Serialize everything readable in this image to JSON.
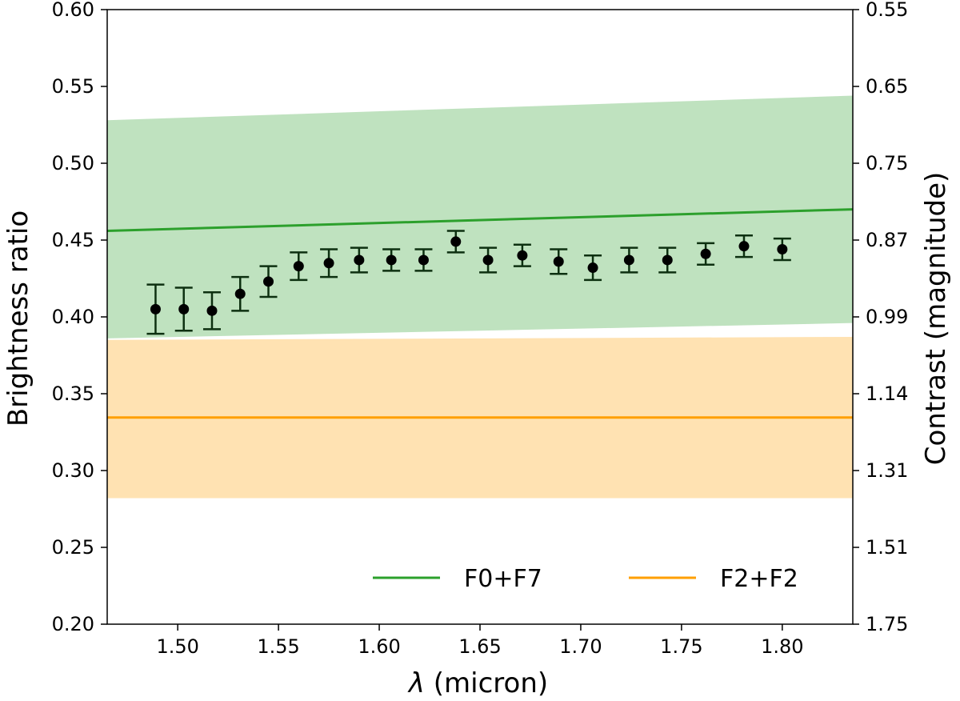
{
  "chart_data": {
    "type": "scatter",
    "xlabel": "λ (micron)",
    "xlabel_symbol": "λ",
    "xlabel_unit": "(micron)",
    "ylabel": "Brightness ratio",
    "y2label": "Contrast (magnitude)",
    "xlim": [
      1.465,
      1.835
    ],
    "ylim": [
      0.2,
      0.6
    ],
    "xticks": [
      1.5,
      1.55,
      1.6,
      1.65,
      1.7,
      1.75,
      1.8
    ],
    "xtick_labels": [
      "1.50",
      "1.55",
      "1.60",
      "1.65",
      "1.70",
      "1.75",
      "1.80"
    ],
    "yticks": [
      0.2,
      0.25,
      0.3,
      0.35,
      0.4,
      0.45,
      0.5,
      0.55,
      0.6
    ],
    "ytick_labels": [
      "0.20",
      "0.25",
      "0.30",
      "0.35",
      "0.40",
      "0.45",
      "0.50",
      "0.55",
      "0.60"
    ],
    "y2tick_labels": [
      "1.75",
      "1.51",
      "1.31",
      "1.14",
      "0.99",
      "0.87",
      "0.75",
      "0.65",
      "0.55"
    ],
    "bands": [
      {
        "name": "F0+F7",
        "color": "#2ca02c",
        "line": [
          [
            1.465,
            0.456
          ],
          [
            1.835,
            0.47
          ]
        ],
        "lower": [
          [
            1.465,
            0.386
          ],
          [
            1.835,
            0.396
          ]
        ],
        "upper": [
          [
            1.465,
            0.528
          ],
          [
            1.835,
            0.544
          ]
        ]
      },
      {
        "name": "F2+F2",
        "color": "#ff9f00",
        "line": [
          [
            1.465,
            0.3345
          ],
          [
            1.835,
            0.3345
          ]
        ],
        "lower": [
          [
            1.465,
            0.282
          ],
          [
            1.835,
            0.282
          ]
        ],
        "upper": [
          [
            1.465,
            0.385
          ],
          [
            1.835,
            0.387
          ]
        ]
      }
    ],
    "series": [
      {
        "name": "measurements",
        "marker_color": "#000000",
        "errorbar_color": "#0d3010",
        "x": [
          1.489,
          1.503,
          1.517,
          1.531,
          1.545,
          1.56,
          1.575,
          1.59,
          1.606,
          1.622,
          1.638,
          1.654,
          1.671,
          1.689,
          1.706,
          1.724,
          1.743,
          1.762,
          1.781,
          1.8
        ],
        "y": [
          0.405,
          0.405,
          0.404,
          0.415,
          0.423,
          0.433,
          0.435,
          0.437,
          0.437,
          0.437,
          0.449,
          0.437,
          0.44,
          0.436,
          0.432,
          0.437,
          0.437,
          0.441,
          0.446,
          0.444
        ],
        "yerr": [
          0.016,
          0.014,
          0.012,
          0.011,
          0.01,
          0.009,
          0.009,
          0.008,
          0.007,
          0.007,
          0.007,
          0.008,
          0.007,
          0.008,
          0.008,
          0.008,
          0.008,
          0.007,
          0.007,
          0.007
        ]
      }
    ],
    "legend": {
      "position": "lower-right",
      "entries": [
        {
          "label": "F0+F7",
          "color": "#2ca02c"
        },
        {
          "label": "F2+F2",
          "color": "#ff9f00"
        }
      ]
    }
  }
}
